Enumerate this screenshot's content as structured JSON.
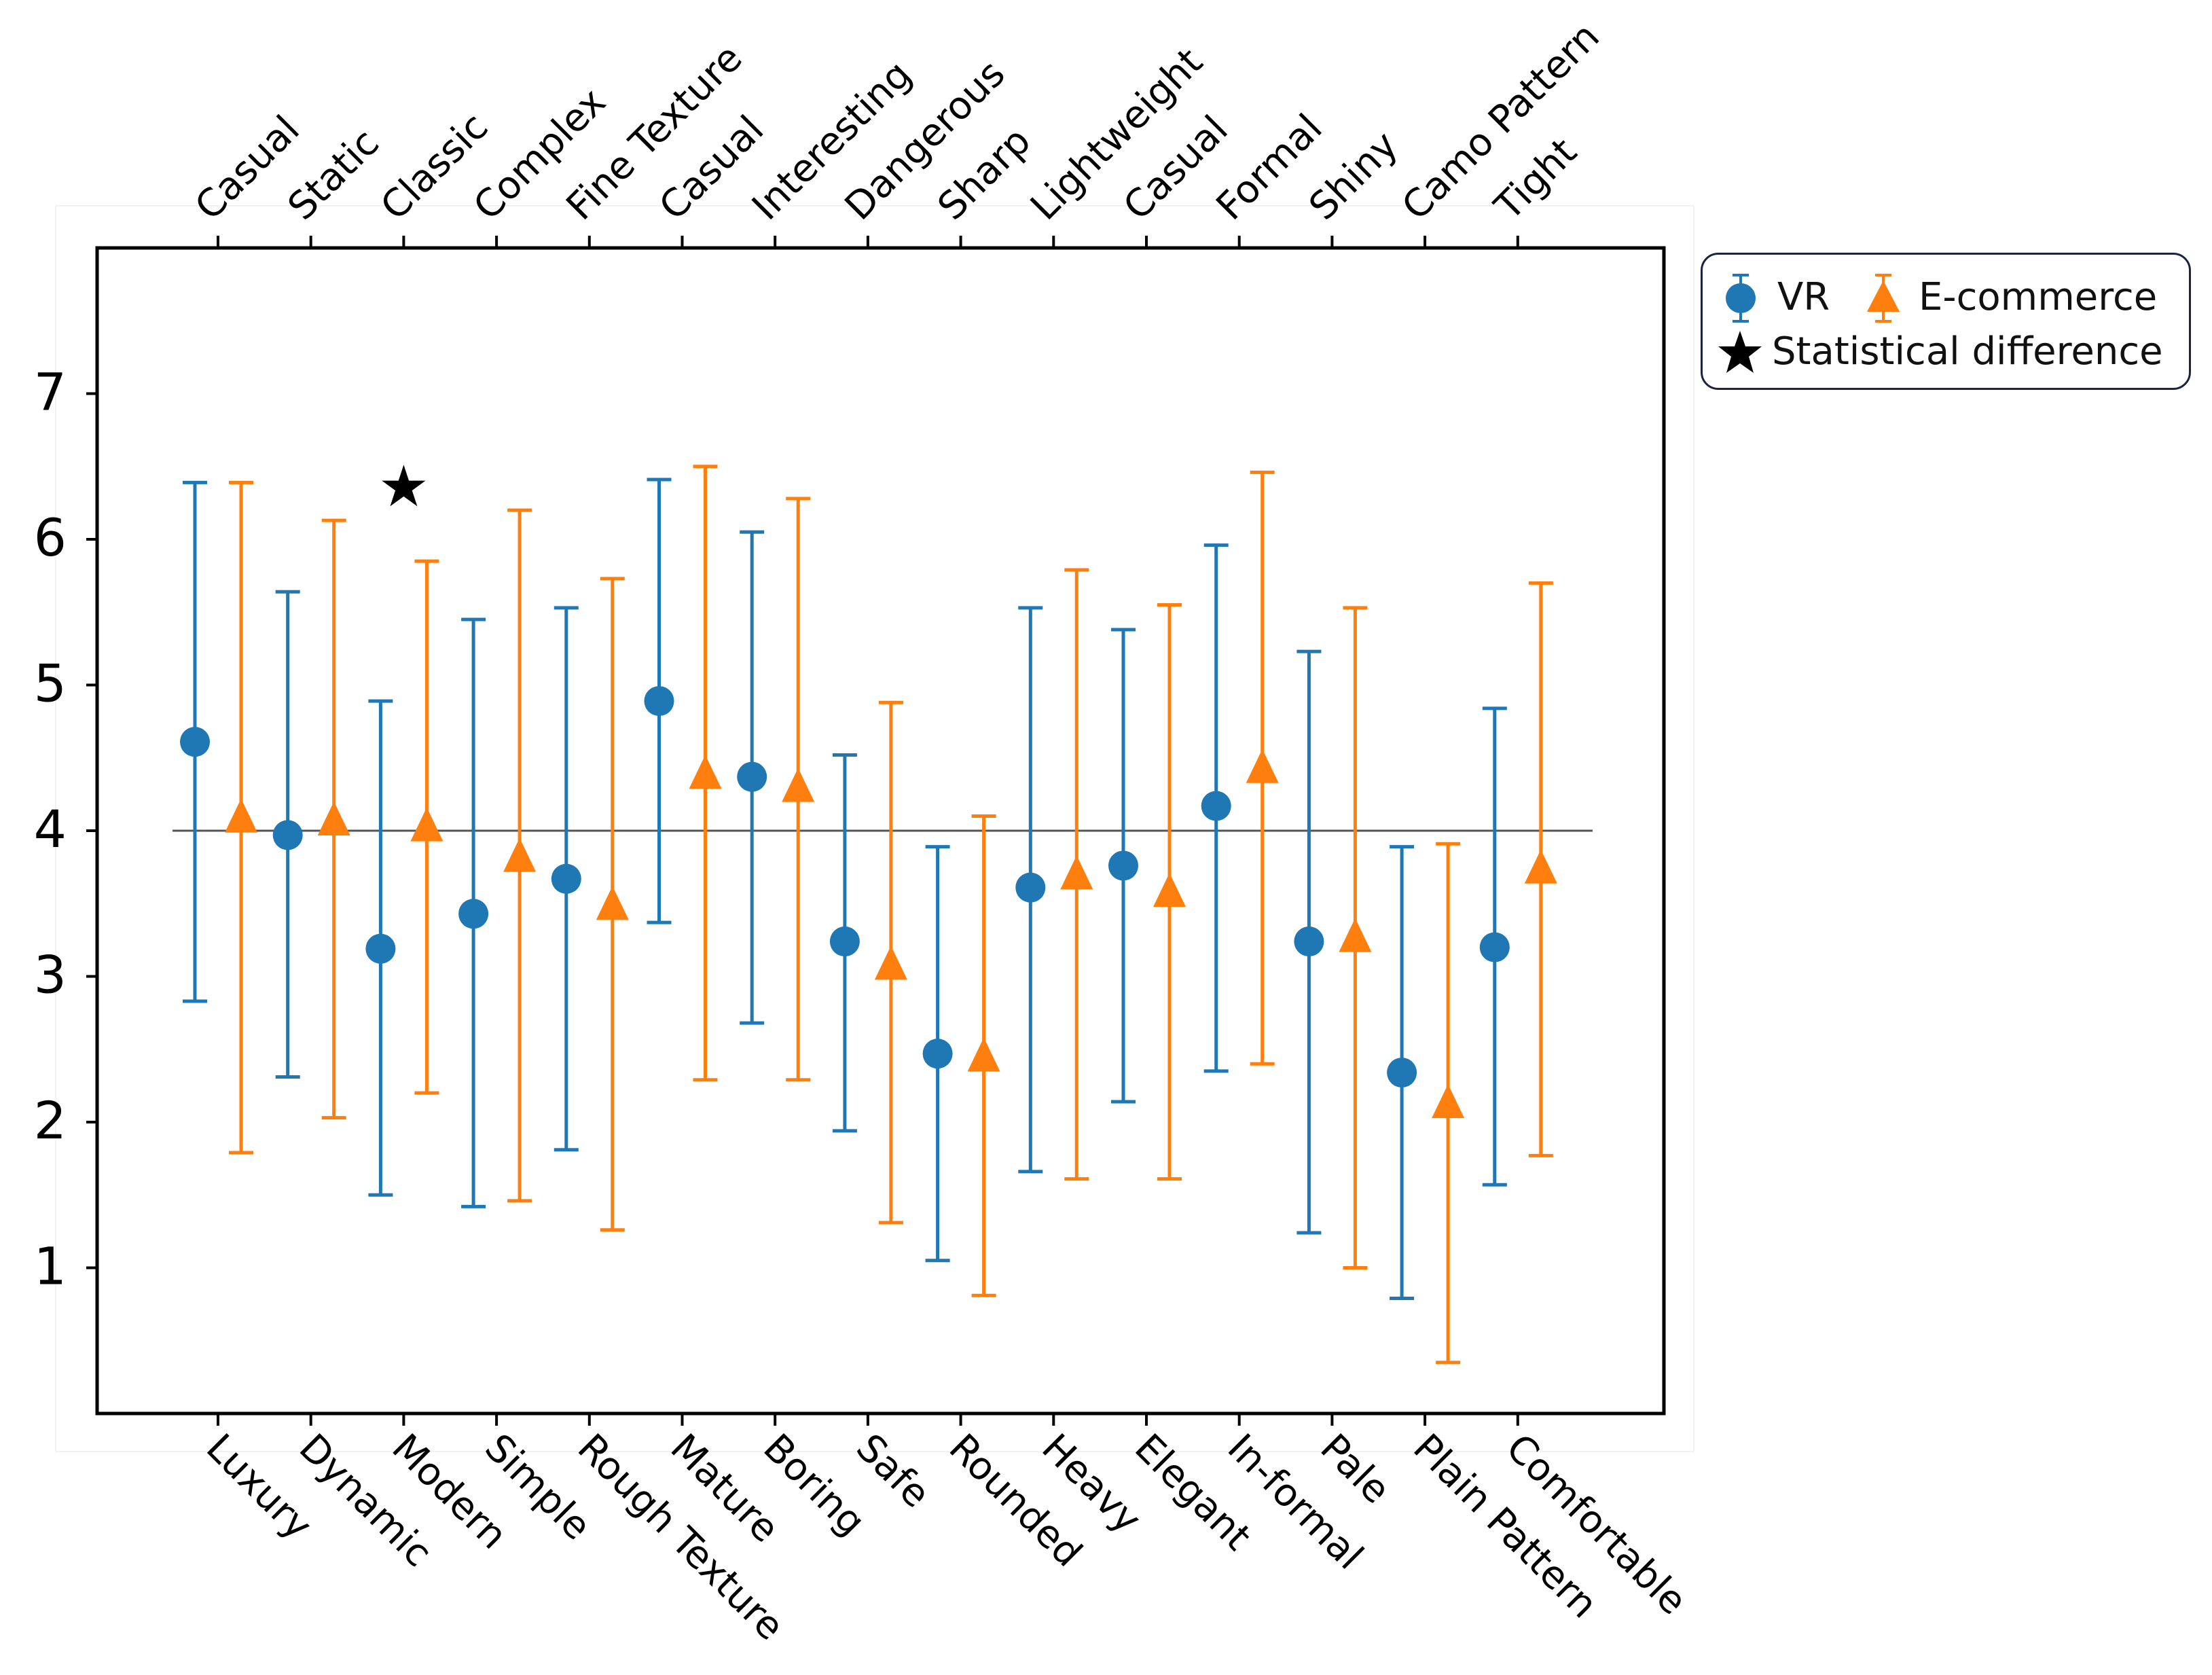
{
  "chart_data": {
    "type": "scatter",
    "subtype": "errorbar",
    "title": "",
    "xlabel": "",
    "ylabel": "",
    "ylim": [
      0,
      8
    ],
    "yticks": [
      1,
      2,
      3,
      4,
      5,
      6,
      7
    ],
    "reference_line": 4,
    "categories_bottom": [
      "Luxury",
      "Dynamic",
      "Modern",
      "Simple",
      "Rough Texture",
      "Mature",
      "Boring",
      "Safe",
      "Rounded",
      "Heavy",
      "Elegant",
      "In-formal",
      "Pale",
      "Plain Pattern",
      "Comfortable"
    ],
    "categories_top": [
      "Casual",
      "Static",
      "Classic",
      "Complex",
      "Fine Texture",
      "Casual",
      "Interesting",
      "Dangerous",
      "Sharp",
      "Lightweight",
      "Casual",
      "Formal",
      "Shiny",
      "Camo Pattern",
      "Tight"
    ],
    "series": [
      {
        "name": "VR",
        "color": "#1f77b4",
        "marker": "circle",
        "values": [
          4.61,
          3.97,
          3.19,
          3.43,
          3.67,
          4.89,
          4.37,
          3.24,
          2.47,
          3.61,
          3.76,
          4.17,
          3.24,
          2.34,
          3.2
        ],
        "lower": [
          2.83,
          2.31,
          1.5,
          1.42,
          1.81,
          3.37,
          2.68,
          1.94,
          1.05,
          1.66,
          2.14,
          2.35,
          1.24,
          0.79,
          1.57
        ],
        "upper": [
          6.39,
          5.64,
          4.89,
          5.45,
          5.53,
          6.41,
          6.05,
          4.52,
          3.89,
          5.53,
          5.38,
          5.96,
          5.23,
          3.89,
          4.84
        ]
      },
      {
        "name": "E-commerce",
        "color": "#ff7f0e",
        "marker": "triangle",
        "values": [
          4.09,
          4.07,
          4.03,
          3.82,
          3.49,
          4.39,
          4.3,
          3.08,
          2.45,
          3.7,
          3.58,
          4.43,
          3.27,
          2.13,
          3.74
        ],
        "lower": [
          1.79,
          2.03,
          2.2,
          1.46,
          1.26,
          2.29,
          2.29,
          1.31,
          0.81,
          1.61,
          1.61,
          2.4,
          1.0,
          0.35,
          1.77
        ],
        "upper": [
          6.39,
          6.13,
          5.85,
          6.2,
          5.73,
          6.5,
          6.28,
          4.88,
          4.1,
          5.79,
          5.55,
          6.46,
          5.53,
          3.91,
          5.7
        ]
      }
    ],
    "significance": [
      {
        "category_index": 2,
        "value": 6.35,
        "symbol": "★"
      }
    ],
    "legend": {
      "position": "outside-top-right",
      "entries": [
        {
          "label": "VR",
          "marker": "circle",
          "color": "#1f77b4"
        },
        {
          "label": "E-commerce",
          "marker": "triangle",
          "color": "#ff7f0e"
        },
        {
          "label": "Statistical difference",
          "marker": "star",
          "color": "#000000"
        }
      ]
    }
  }
}
